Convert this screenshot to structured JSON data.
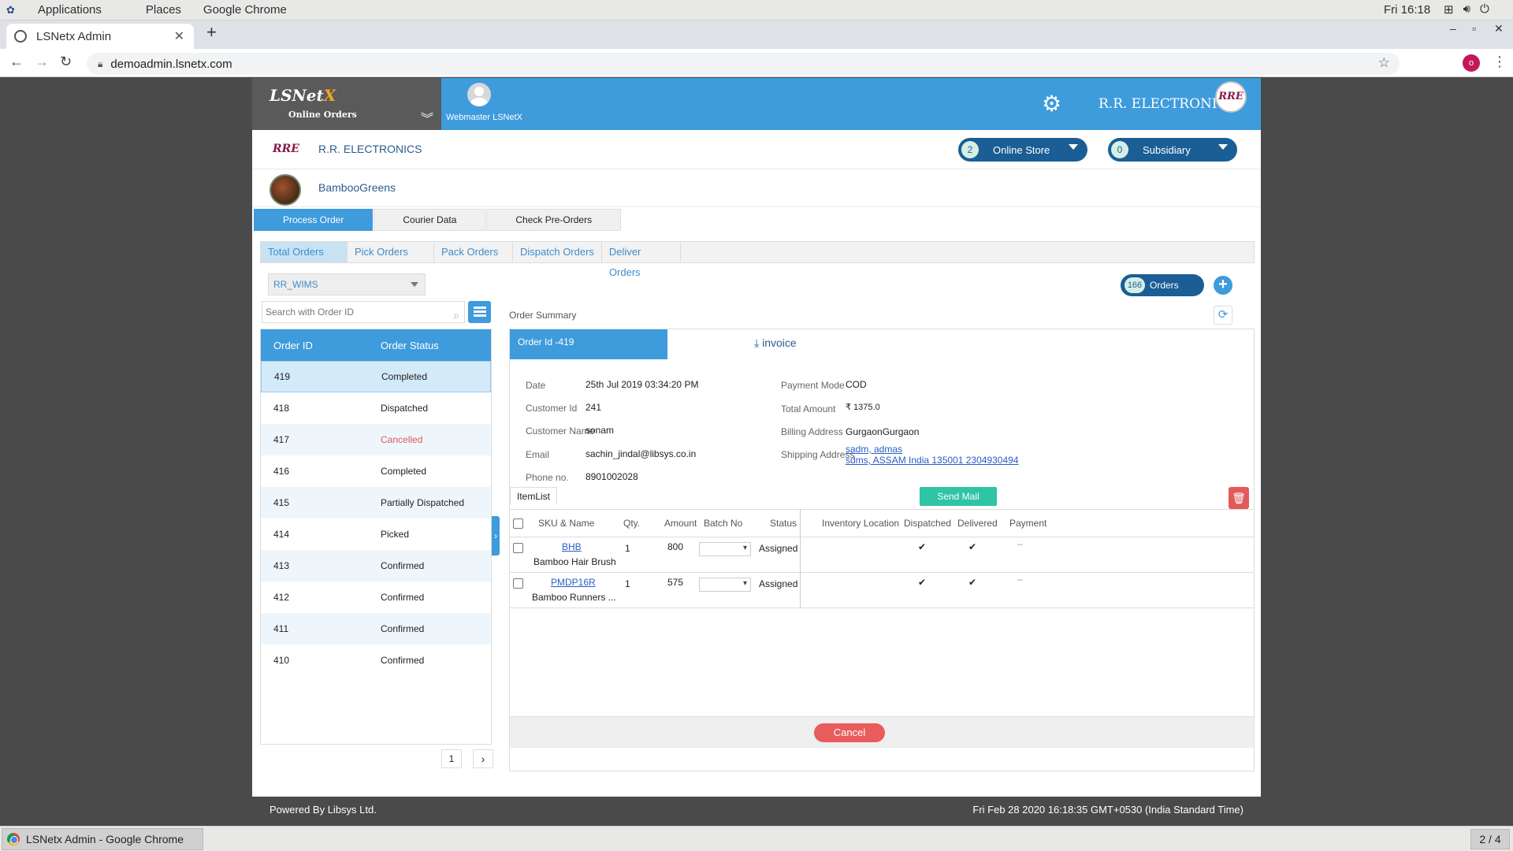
{
  "os": {
    "menu": [
      "Applications",
      "Places",
      "Google Chrome"
    ],
    "clock": "Fri 16:18"
  },
  "browser": {
    "tab_title": "LSNetx Admin",
    "url": "demoadmin.lsnetx.com",
    "profile_initial": "o"
  },
  "header": {
    "logo_text_main": "LSNet",
    "logo_text_x": "X",
    "logo_subtitle": "Online Orders",
    "user_name": "Webmaster LSNetX",
    "store_title": "R.R. ELECTRONICS",
    "store_logo_text": "RRE"
  },
  "brand": {
    "name": "R.R. ELECTRONICS",
    "logo_text": "RRE",
    "online_store": {
      "count": "2",
      "label": "Online Store"
    },
    "subsidiary": {
      "count": "0",
      "label": "Subsidiary"
    },
    "secondary_name": "BambooGreens"
  },
  "main_tabs": [
    "Process Order",
    "Courier Data",
    "Check Pre-Orders"
  ],
  "sub_tabs": [
    "Total Orders",
    "Pick Orders",
    "Pack Orders",
    "Dispatch Orders",
    "Deliver Orders"
  ],
  "warehouse": "RR_WIMS",
  "search": {
    "placeholder": "Search with Order ID"
  },
  "orders_badge": {
    "count": "166",
    "label": "Orders"
  },
  "order_list": {
    "col_id": "Order ID",
    "col_status": "Order Status",
    "rows": [
      {
        "id": "419",
        "status": "Completed"
      },
      {
        "id": "418",
        "status": "Dispatched"
      },
      {
        "id": "417",
        "status": "Cancelled"
      },
      {
        "id": "416",
        "status": "Completed"
      },
      {
        "id": "415",
        "status": "Partially Dispatched"
      },
      {
        "id": "414",
        "status": "Picked"
      },
      {
        "id": "413",
        "status": "Confirmed"
      },
      {
        "id": "412",
        "status": "Confirmed"
      },
      {
        "id": "411",
        "status": "Confirmed"
      },
      {
        "id": "410",
        "status": "Confirmed"
      }
    ],
    "page": "1"
  },
  "summary": {
    "title": "Order Summary",
    "order_id_label": "Order Id -419",
    "invoice_label": "invoice",
    "fields": {
      "date_label": "Date",
      "date": "25th Jul 2019 03:34:20 PM",
      "customer_id_label": "Customer Id",
      "customer_id": "241",
      "customer_name_label": "Customer Name",
      "customer_name": "sonam",
      "email_label": "Email",
      "email": "sachin_jindal@libsys.co.in",
      "phone_label": "Phone no.",
      "phone": "8901002028",
      "payment_mode_label": "Payment Mode",
      "payment_mode": "COD",
      "total_amount_label": "Total Amount",
      "total_amount": "₹ 1375.0",
      "billing_label": "Billing Address",
      "billing": "GurgaonGurgaon",
      "shipping_label": "Shipping Address",
      "shipping_line1": "sadm, admas",
      "shipping_line2": "sdms, ASSAM India 135001 2304930494"
    },
    "itemlist_label": "ItemList",
    "send_mail_label": "Send Mail",
    "cancel_label": "Cancel"
  },
  "items": {
    "headers": [
      "SKU & Name",
      "Qty.",
      "Amount",
      "Batch No",
      "Status",
      "Inventory Location",
      "Dispatched",
      "Delivered",
      "Payment"
    ],
    "rows": [
      {
        "sku": "BHB",
        "name": "Bamboo Hair Brush",
        "qty": "1",
        "amount": "800",
        "status": "Assigned",
        "dispatched": "✔",
        "delivered": "✔",
        "payment": "–"
      },
      {
        "sku": "PMDP16R",
        "name": "Bamboo Runners ...",
        "qty": "1",
        "amount": "575",
        "status": "Assigned",
        "dispatched": "✔",
        "delivered": "✔",
        "payment": "–"
      }
    ]
  },
  "footer": {
    "left": "Powered By Libsys Ltd.",
    "right": "Fri Feb 28 2020 16:18:35 GMT+0530 (India Standard Time)"
  },
  "taskbar": {
    "window_title": "LSNetx Admin - Google Chrome",
    "workspace": "2 / 4"
  }
}
